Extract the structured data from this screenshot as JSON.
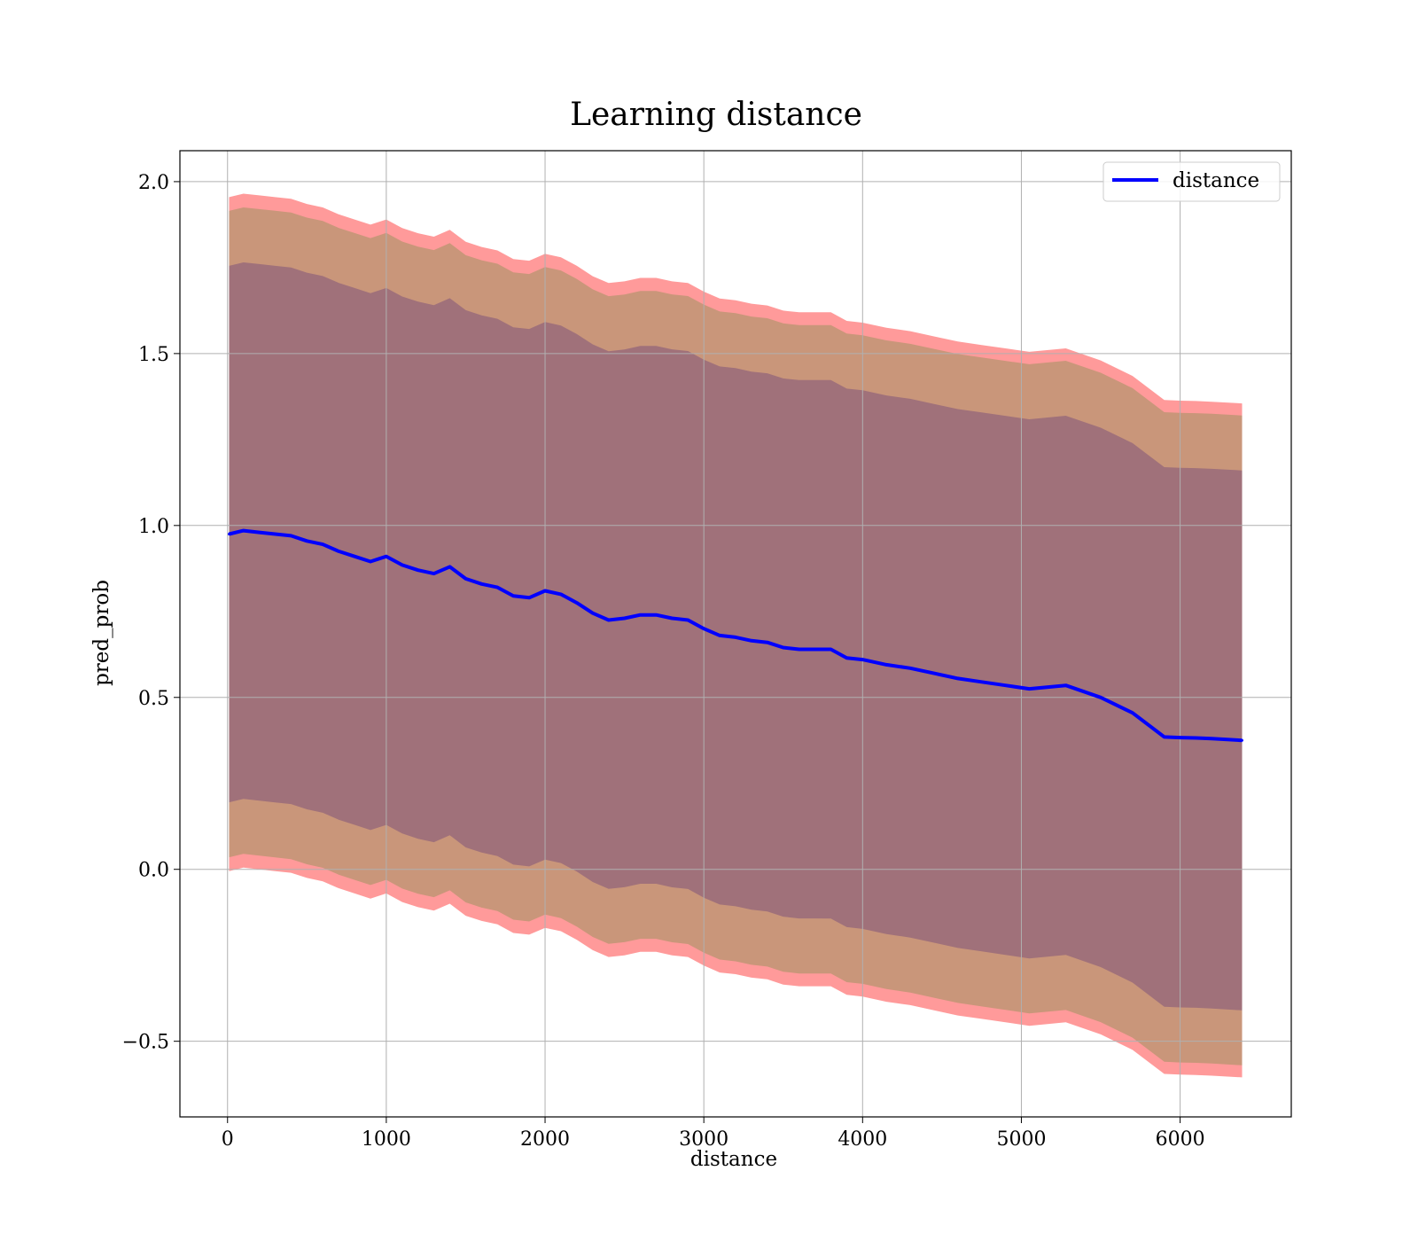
{
  "chart_data": {
    "type": "line",
    "title": "Learning distance",
    "xlabel": "distance",
    "ylabel": "pred_prob",
    "xlim": [
      -300,
      6700
    ],
    "ylim": [
      -0.72,
      2.09
    ],
    "xticks": [
      0,
      1000,
      2000,
      3000,
      4000,
      5000,
      6000
    ],
    "xtick_labels": [
      "0",
      "1000",
      "2000",
      "3000",
      "4000",
      "5000",
      "6000"
    ],
    "yticks": [
      -0.5,
      0.0,
      0.5,
      1.0,
      1.5,
      2.0
    ],
    "ytick_labels": [
      "−0.5",
      "0.0",
      "0.5",
      "1.0",
      "1.5",
      "2.0"
    ],
    "grid": true,
    "legend_position": "top-right",
    "colors": {
      "line": "#0000ff",
      "band_outer": "#ff9a9a",
      "band_middle": "#c9967a",
      "band_inner": "#a0717a"
    },
    "series": [
      {
        "name": "distance",
        "x": [
          10,
          100,
          200,
          300,
          400,
          500,
          600,
          700,
          800,
          900,
          1000,
          1100,
          1200,
          1300,
          1400,
          1500,
          1600,
          1700,
          1800,
          1900,
          2000,
          2100,
          2200,
          2300,
          2400,
          2500,
          2600,
          2700,
          2800,
          2900,
          3000,
          3100,
          3200,
          3300,
          3400,
          3500,
          3600,
          3700,
          3800,
          3900,
          4000,
          4150,
          4300,
          4450,
          4600,
          4750,
          4900,
          5050,
          5280,
          5500,
          5700,
          5900,
          6000,
          6100,
          6200,
          6390
        ],
        "values": [
          0.975,
          0.985,
          0.98,
          0.975,
          0.97,
          0.955,
          0.945,
          0.925,
          0.91,
          0.895,
          0.91,
          0.885,
          0.87,
          0.86,
          0.88,
          0.845,
          0.83,
          0.82,
          0.795,
          0.79,
          0.81,
          0.8,
          0.775,
          0.745,
          0.725,
          0.73,
          0.74,
          0.74,
          0.73,
          0.725,
          0.7,
          0.68,
          0.675,
          0.665,
          0.66,
          0.645,
          0.64,
          0.64,
          0.64,
          0.615,
          0.61,
          0.595,
          0.585,
          0.57,
          0.555,
          0.545,
          0.535,
          0.525,
          0.535,
          0.5,
          0.455,
          0.385,
          0.383,
          0.382,
          0.38,
          0.375
        ]
      }
    ],
    "bands": [
      {
        "half_width_start": 0.98,
        "half_width_end": 0.98,
        "color": "band_outer"
      },
      {
        "half_width_start": 0.94,
        "half_width_end": 0.945,
        "color": "band_middle"
      },
      {
        "half_width_start": 0.78,
        "half_width_end": 0.785,
        "color": "band_inner"
      }
    ]
  }
}
